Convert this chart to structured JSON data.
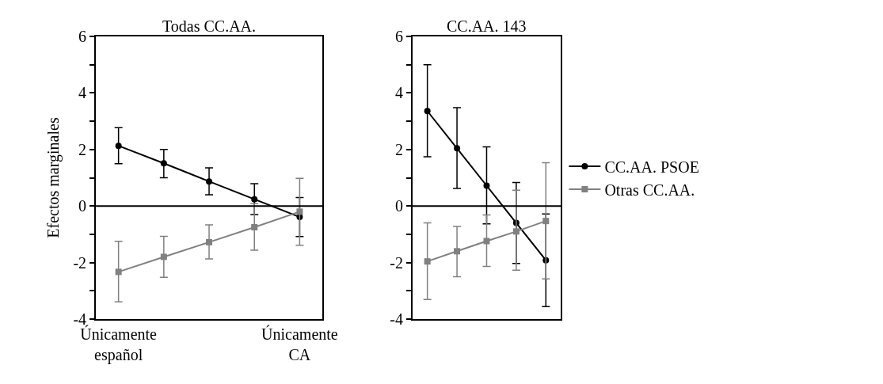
{
  "chart_data": [
    {
      "type": "line",
      "title": "Todas CC.AA.",
      "ylabel": "Efectos marginales",
      "categories": [
        "Únicamente español",
        null,
        null,
        null,
        "Únicamente CA"
      ],
      "ylim": [
        -4,
        6
      ],
      "yticks": [
        -4,
        {
          "value": -3,
          "label": null
        },
        -2,
        {
          "value": -1,
          "label": null
        },
        0,
        {
          "value": 1,
          "label": null
        },
        2,
        {
          "value": 3,
          "label": null
        },
        4,
        {
          "value": 5,
          "label": null
        },
        6
      ],
      "ref_lines": [
        {
          "axis": "y",
          "value": 0,
          "color": "#000000"
        }
      ],
      "series": [
        {
          "color": "#000000",
          "marker": "circle",
          "values": [
            2.13,
            1.51,
            0.87,
            0.24,
            -0.39
          ],
          "errors": [
            [
              1.5,
              2.77
            ],
            [
              1.0,
              2.0
            ],
            [
              0.4,
              1.35
            ],
            [
              -0.3,
              0.79
            ],
            [
              -1.08,
              0.3
            ]
          ]
        },
        {
          "color": "#808080",
          "marker": "square",
          "values": [
            -2.33,
            -1.8,
            -1.28,
            -0.75,
            -0.2
          ],
          "errors": [
            [
              -3.39,
              -1.25
            ],
            [
              -2.52,
              -1.07
            ],
            [
              -1.87,
              -0.67
            ],
            [
              -1.56,
              0.08
            ],
            [
              -1.39,
              0.98
            ]
          ]
        }
      ]
    },
    {
      "type": "line",
      "title": "CC.AA. 143",
      "categories": [
        null,
        null,
        null,
        null,
        null
      ],
      "tick_labels": "y",
      "ylim": [
        -4,
        6
      ],
      "yticks": [
        -4,
        {
          "value": -3,
          "label": null
        },
        -2,
        {
          "value": -1,
          "label": null
        },
        0,
        {
          "value": 1,
          "label": null
        },
        2,
        {
          "value": 3,
          "label": null
        },
        4,
        {
          "value": 5,
          "label": null
        },
        6
      ],
      "legend": "right",
      "ref_lines": [
        {
          "axis": "y",
          "value": 0,
          "color": "#000000"
        }
      ],
      "series": [
        {
          "name": "CC.AA. PSOE",
          "color": "#000000",
          "marker": "circle",
          "values": [
            3.36,
            2.04,
            0.72,
            -0.6,
            -1.92
          ],
          "errors": [
            [
              1.74,
              5.0
            ],
            [
              0.62,
              3.48
            ],
            [
              -0.63,
              2.09
            ],
            [
              -2.03,
              0.83
            ],
            [
              -3.56,
              -0.28
            ]
          ]
        },
        {
          "name": "Otras CC.AA.",
          "color": "#808080",
          "marker": "square",
          "values": [
            -1.96,
            -1.6,
            -1.24,
            -0.9,
            -0.53
          ],
          "errors": [
            [
              -3.31,
              -0.6
            ],
            [
              -2.5,
              -0.72
            ],
            [
              -2.14,
              -0.32
            ],
            [
              -2.27,
              0.56
            ],
            [
              -2.58,
              1.53
            ]
          ]
        }
      ]
    }
  ]
}
